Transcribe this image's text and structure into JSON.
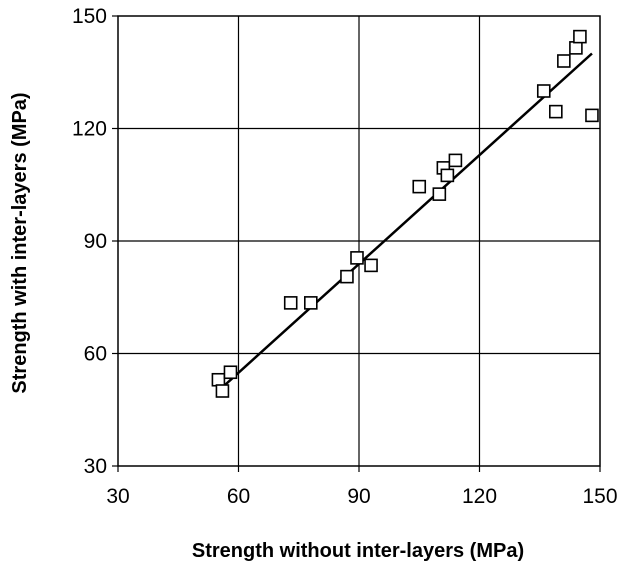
{
  "chart_data": {
    "type": "scatter",
    "xlabel": "Strength without inter-layers (MPa)",
    "ylabel": "Strength with inter-layers (MPa)",
    "xlim": [
      30,
      150
    ],
    "ylim": [
      30,
      150
    ],
    "x_ticks": [
      "30",
      "60",
      "90",
      "120",
      "150"
    ],
    "y_ticks": [
      "30",
      "60",
      "90",
      "120",
      "150"
    ],
    "grid": true,
    "marker": "open-square",
    "colors": {
      "marker": "#000000",
      "line": "#000000",
      "grid": "#000000"
    },
    "series": [
      {
        "points": [
          [
            55,
            53
          ],
          [
            56,
            50
          ],
          [
            58,
            55
          ],
          [
            73,
            73.5
          ],
          [
            78,
            73.5
          ],
          [
            87,
            80.5
          ],
          [
            89.5,
            85.5
          ],
          [
            93,
            83.5
          ],
          [
            105,
            104.5
          ],
          [
            110,
            102.5
          ],
          [
            111,
            109.5
          ],
          [
            112,
            107.5
          ],
          [
            114,
            111.5
          ],
          [
            136,
            130
          ],
          [
            139,
            124.5
          ],
          [
            141,
            138
          ],
          [
            144,
            141.5
          ],
          [
            145,
            144.5
          ],
          [
            148,
            123.5
          ]
        ]
      }
    ],
    "trendline": {
      "x": [
        56,
        148
      ],
      "y": [
        51,
        140
      ]
    }
  }
}
